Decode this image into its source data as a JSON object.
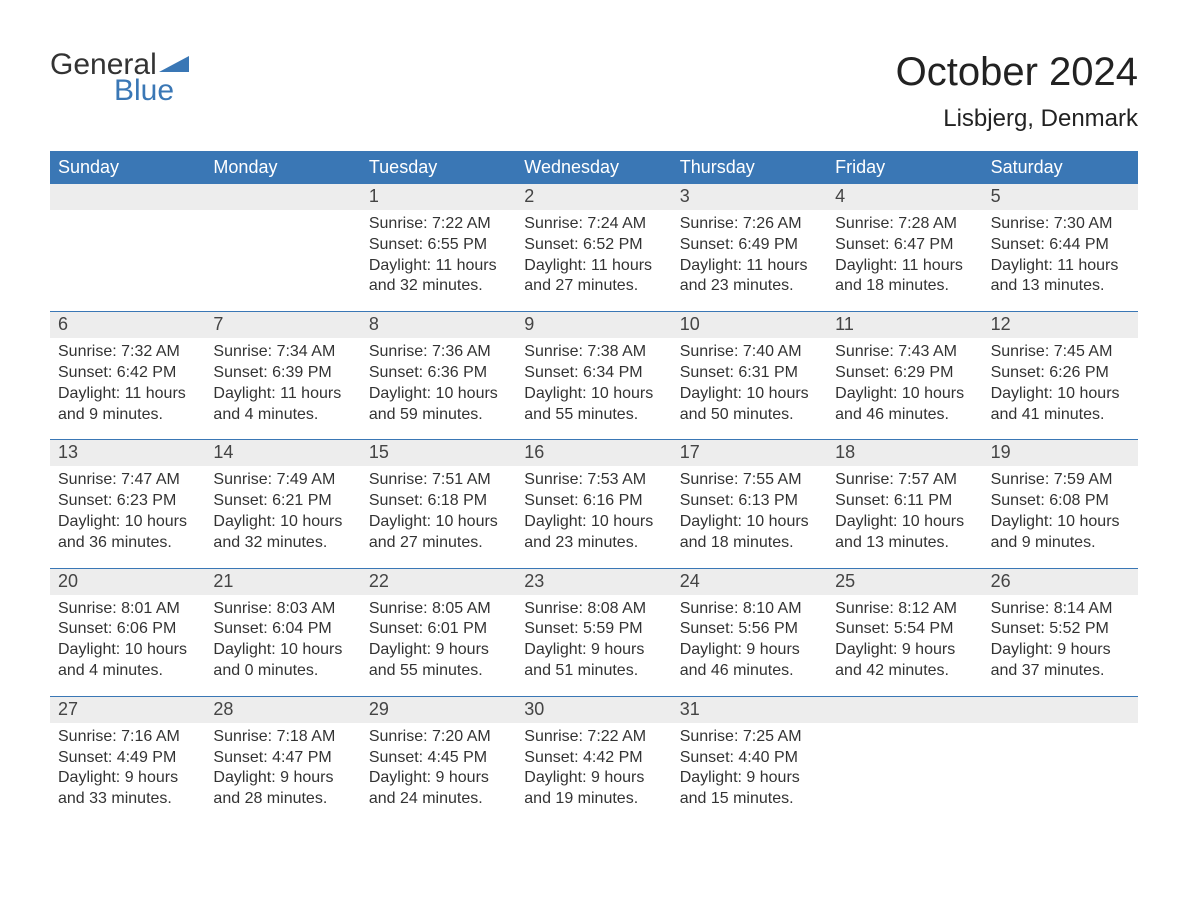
{
  "logo": {
    "word1": "General",
    "word2": "Blue"
  },
  "title": "October 2024",
  "location": "Lisbjerg, Denmark",
  "colors": {
    "header_bg": "#3a77b5",
    "header_text": "#ffffff",
    "daynum_bg": "#ededed",
    "rule": "#3a77b5",
    "text": "#333333",
    "logo_blue": "#3a77b5"
  },
  "typography": {
    "title_fontsize": 40,
    "location_fontsize": 24,
    "header_fontsize": 18,
    "daynum_fontsize": 18,
    "body_fontsize": 16
  },
  "layout": {
    "cols": 7,
    "week_start": "Sunday"
  },
  "day_names": [
    "Sunday",
    "Monday",
    "Tuesday",
    "Wednesday",
    "Thursday",
    "Friday",
    "Saturday"
  ],
  "weeks": [
    {
      "nums": [
        "",
        "",
        "1",
        "2",
        "3",
        "4",
        "5"
      ],
      "cells": [
        "",
        "",
        "Sunrise: 7:22 AM\nSunset: 6:55 PM\nDaylight: 11 hours and 32 minutes.",
        "Sunrise: 7:24 AM\nSunset: 6:52 PM\nDaylight: 11 hours and 27 minutes.",
        "Sunrise: 7:26 AM\nSunset: 6:49 PM\nDaylight: 11 hours and 23 minutes.",
        "Sunrise: 7:28 AM\nSunset: 6:47 PM\nDaylight: 11 hours and 18 minutes.",
        "Sunrise: 7:30 AM\nSunset: 6:44 PM\nDaylight: 11 hours and 13 minutes."
      ]
    },
    {
      "nums": [
        "6",
        "7",
        "8",
        "9",
        "10",
        "11",
        "12"
      ],
      "cells": [
        "Sunrise: 7:32 AM\nSunset: 6:42 PM\nDaylight: 11 hours and 9 minutes.",
        "Sunrise: 7:34 AM\nSunset: 6:39 PM\nDaylight: 11 hours and 4 minutes.",
        "Sunrise: 7:36 AM\nSunset: 6:36 PM\nDaylight: 10 hours and 59 minutes.",
        "Sunrise: 7:38 AM\nSunset: 6:34 PM\nDaylight: 10 hours and 55 minutes.",
        "Sunrise: 7:40 AM\nSunset: 6:31 PM\nDaylight: 10 hours and 50 minutes.",
        "Sunrise: 7:43 AM\nSunset: 6:29 PM\nDaylight: 10 hours and 46 minutes.",
        "Sunrise: 7:45 AM\nSunset: 6:26 PM\nDaylight: 10 hours and 41 minutes."
      ]
    },
    {
      "nums": [
        "13",
        "14",
        "15",
        "16",
        "17",
        "18",
        "19"
      ],
      "cells": [
        "Sunrise: 7:47 AM\nSunset: 6:23 PM\nDaylight: 10 hours and 36 minutes.",
        "Sunrise: 7:49 AM\nSunset: 6:21 PM\nDaylight: 10 hours and 32 minutes.",
        "Sunrise: 7:51 AM\nSunset: 6:18 PM\nDaylight: 10 hours and 27 minutes.",
        "Sunrise: 7:53 AM\nSunset: 6:16 PM\nDaylight: 10 hours and 23 minutes.",
        "Sunrise: 7:55 AM\nSunset: 6:13 PM\nDaylight: 10 hours and 18 minutes.",
        "Sunrise: 7:57 AM\nSunset: 6:11 PM\nDaylight: 10 hours and 13 minutes.",
        "Sunrise: 7:59 AM\nSunset: 6:08 PM\nDaylight: 10 hours and 9 minutes."
      ]
    },
    {
      "nums": [
        "20",
        "21",
        "22",
        "23",
        "24",
        "25",
        "26"
      ],
      "cells": [
        "Sunrise: 8:01 AM\nSunset: 6:06 PM\nDaylight: 10 hours and 4 minutes.",
        "Sunrise: 8:03 AM\nSunset: 6:04 PM\nDaylight: 10 hours and 0 minutes.",
        "Sunrise: 8:05 AM\nSunset: 6:01 PM\nDaylight: 9 hours and 55 minutes.",
        "Sunrise: 8:08 AM\nSunset: 5:59 PM\nDaylight: 9 hours and 51 minutes.",
        "Sunrise: 8:10 AM\nSunset: 5:56 PM\nDaylight: 9 hours and 46 minutes.",
        "Sunrise: 8:12 AM\nSunset: 5:54 PM\nDaylight: 9 hours and 42 minutes.",
        "Sunrise: 8:14 AM\nSunset: 5:52 PM\nDaylight: 9 hours and 37 minutes."
      ]
    },
    {
      "nums": [
        "27",
        "28",
        "29",
        "30",
        "31",
        "",
        ""
      ],
      "cells": [
        "Sunrise: 7:16 AM\nSunset: 4:49 PM\nDaylight: 9 hours and 33 minutes.",
        "Sunrise: 7:18 AM\nSunset: 4:47 PM\nDaylight: 9 hours and 28 minutes.",
        "Sunrise: 7:20 AM\nSunset: 4:45 PM\nDaylight: 9 hours and 24 minutes.",
        "Sunrise: 7:22 AM\nSunset: 4:42 PM\nDaylight: 9 hours and 19 minutes.",
        "Sunrise: 7:25 AM\nSunset: 4:40 PM\nDaylight: 9 hours and 15 minutes.",
        "",
        ""
      ]
    }
  ]
}
